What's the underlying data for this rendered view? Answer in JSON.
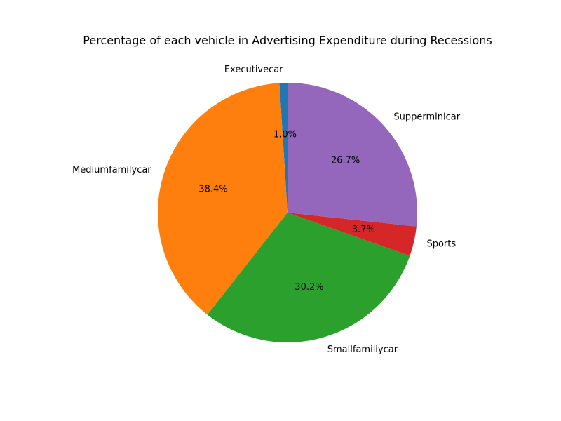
{
  "chart_data": {
    "type": "pie",
    "title": "Percentage of each vehicle in Advertising Expenditure during Recessions",
    "categories": [
      "Executivecar",
      "Mediumfamilycar",
      "Smallfamiliycar",
      "Sports",
      "Supperminicar"
    ],
    "values": [
      1.0,
      38.4,
      30.2,
      3.7,
      26.7
    ],
    "value_labels": [
      "1.0%",
      "38.4%",
      "30.2%",
      "3.7%",
      "26.7%"
    ],
    "colors": [
      "#1f77b4",
      "#ff7f0e",
      "#2ca02c",
      "#d62728",
      "#9467bd"
    ],
    "start_angle_deg": 90,
    "direction": "counterclockwise",
    "legend": "none"
  }
}
